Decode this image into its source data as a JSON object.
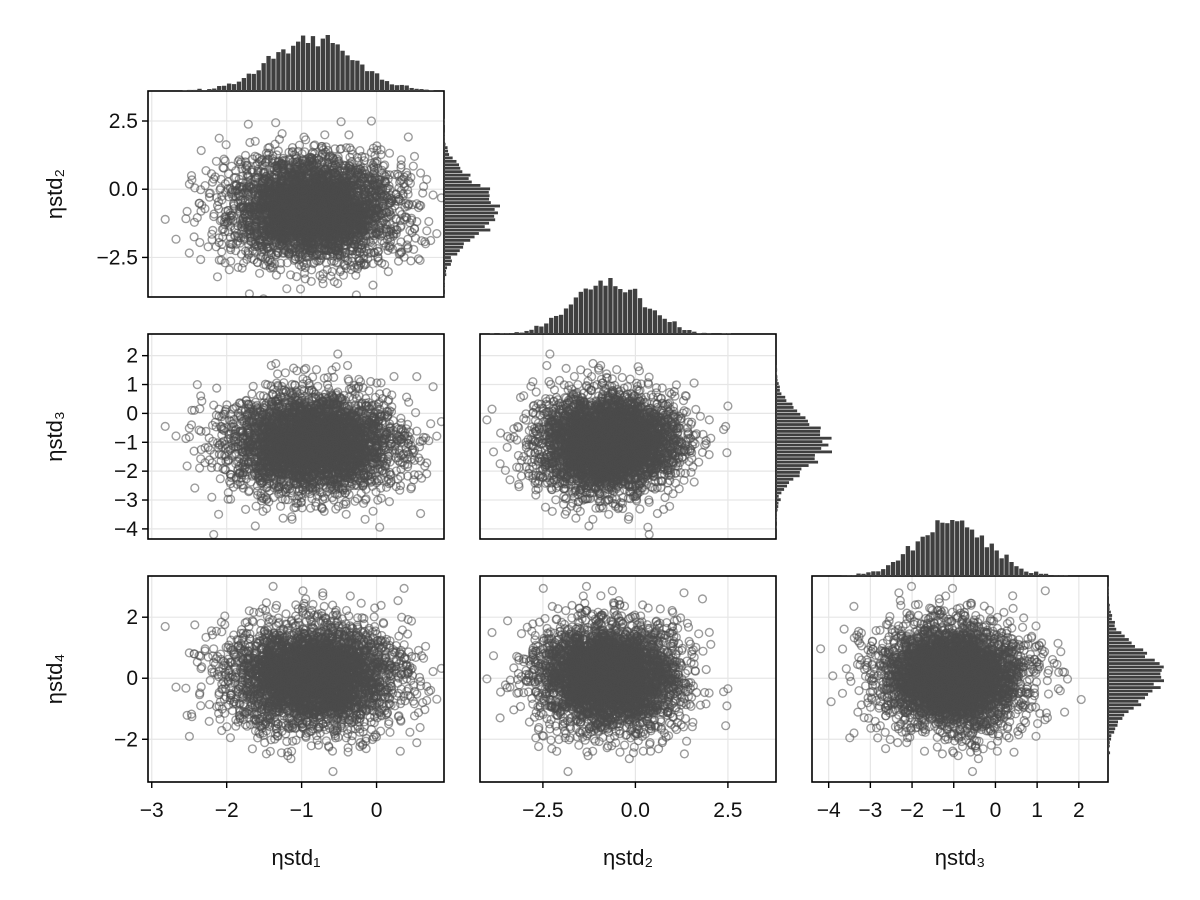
{
  "chart_data": {
    "type": "scatter",
    "variables": [
      "ηstd₁",
      "ηstd₂",
      "ηstd₃",
      "ηstd₄"
    ],
    "x_axis_labels": [
      "ηstd₁",
      "ηstd₂",
      "ηstd₃"
    ],
    "y_axis_labels": [
      "ηstd₂",
      "ηstd₃",
      "ηstd₄"
    ],
    "colors": {
      "marker": "#4a4a4a",
      "histogram": "#3f3f3f",
      "grid": "#e6e6e6",
      "frame": "#000000"
    },
    "marker": "open-circle",
    "grid": true,
    "marginal_histograms": [
      "ηstd₁",
      "ηstd₂",
      "ηstd₃",
      "ηstd₄"
    ],
    "distributions": {
      "ηstd₁": {
        "mean": -0.85,
        "sd": 0.55
      },
      "ηstd₂": {
        "mean": -0.72,
        "sd": 0.95
      },
      "ηstd₃": {
        "mean": -1.0,
        "sd": 0.85
      },
      "ηstd₄": {
        "mean": 0.05,
        "sd": 0.85
      }
    },
    "samples_shown": 4000,
    "panels": [
      {
        "x": "ηstd₁",
        "y": "ηstd₂",
        "xlim": [
          -3.05,
          0.9
        ],
        "ylim": [
          -3.95,
          3.6
        ],
        "xticks": [],
        "xtick_labels": [],
        "yticks": [
          -2.5,
          0,
          2.5
        ],
        "ytick_labels": [
          "−2.5",
          "0.0",
          "2.5"
        ]
      },
      {
        "x": "ηstd₁",
        "y": "ηstd₃",
        "xlim": [
          -3.05,
          0.9
        ],
        "ylim": [
          -4.35,
          2.75
        ],
        "xticks": [],
        "xtick_labels": [],
        "yticks": [
          -4,
          -3,
          -2,
          -1,
          0,
          1,
          2
        ],
        "ytick_labels": [
          "−4",
          "−3",
          "−2",
          "−1",
          "0",
          "1",
          "2"
        ]
      },
      {
        "x": "ηstd₂",
        "y": "ηstd₃",
        "xlim": [
          -4.2,
          3.8
        ],
        "ylim": [
          -4.35,
          2.75
        ],
        "xticks": [],
        "xtick_labels": [],
        "yticks": [],
        "ytick_labels": []
      },
      {
        "x": "ηstd₁",
        "y": "ηstd₄",
        "xlim": [
          -3.05,
          0.9
        ],
        "ylim": [
          -3.4,
          3.35
        ],
        "xticks": [
          -3,
          -2,
          -1,
          0
        ],
        "xtick_labels": [
          "−3",
          "−2",
          "−1",
          "0"
        ],
        "yticks": [
          -2,
          0,
          2
        ],
        "ytick_labels": [
          "−2",
          "0",
          "2"
        ]
      },
      {
        "x": "ηstd₂",
        "y": "ηstd₄",
        "xlim": [
          -4.2,
          3.8
        ],
        "ylim": [
          -3.4,
          3.35
        ],
        "xticks": [
          -2.5,
          0,
          2.5
        ],
        "xtick_labels": [
          "−2.5",
          "0.0",
          "2.5"
        ],
        "yticks": [],
        "ytick_labels": []
      },
      {
        "x": "ηstd₃",
        "y": "ηstd₄",
        "xlim": [
          -4.4,
          2.7
        ],
        "ylim": [
          -3.4,
          3.35
        ],
        "xticks": [
          -4,
          -3,
          -2,
          -1,
          0,
          1,
          2
        ],
        "xtick_labels": [
          "−4",
          "−3",
          "−2",
          "−1",
          "0",
          "1",
          "2"
        ],
        "yticks": [],
        "ytick_labels": []
      }
    ]
  }
}
